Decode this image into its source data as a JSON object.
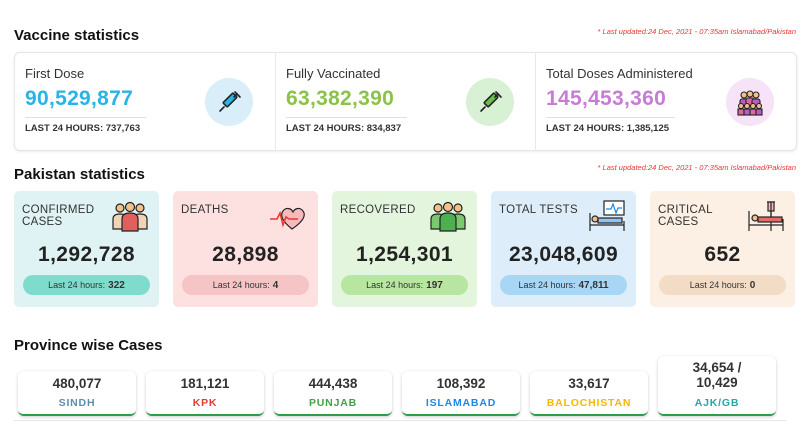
{
  "vaccine": {
    "title": "Vaccine statistics",
    "updated": "* Last updated:24 Dec, 2021 - 07:35am Islamabad/Pakistan",
    "items": [
      {
        "label": "First Dose",
        "value": "90,529,877",
        "last_label": "LAST 24 HOURS:",
        "last_value": "737,763",
        "color": "#29b3e6",
        "icon": "syringe-icon"
      },
      {
        "label": "Fully Vaccinated",
        "value": "63,382,390",
        "last_label": "LAST 24 HOURS:",
        "last_value": "834,837",
        "color": "#8bc34a",
        "icon": "syringe-icon"
      },
      {
        "label": "Total Doses Administered",
        "value": "145,453,360",
        "last_label": "LAST 24 HOURS:",
        "last_value": "1,385,125",
        "color": "#c77dd6",
        "icon": "crowd-icon"
      }
    ]
  },
  "pakistan": {
    "title": "Pakistan statistics",
    "updated": "* Last updated:24 Dec, 2021 - 07:35am Islamabad/Pakistan",
    "cards": [
      {
        "label": "Confirmed Cases",
        "value": "1,292,728",
        "last_label": "Last 24 hours:",
        "last_value": "322",
        "bg": "#dff3f4",
        "pill": "#7fdccd",
        "icon": "people-icon"
      },
      {
        "label": "Deaths",
        "value": "28,898",
        "last_label": "Last 24 hours:",
        "last_value": "4",
        "bg": "#fde1e1",
        "pill": "#f5c4c4",
        "icon": "heartbeat-icon"
      },
      {
        "label": "Recovered",
        "value": "1,254,301",
        "last_label": "Last 24 hours:",
        "last_value": "197",
        "bg": "#e3f5dc",
        "pill": "#b6e6a0",
        "icon": "people-icon"
      },
      {
        "label": "Total Tests",
        "value": "23,048,609",
        "last_label": "Last 24 hours:",
        "last_value": "47,811",
        "bg": "#ddeefa",
        "pill": "#a8d6f5",
        "icon": "hospital-bed-icon"
      },
      {
        "label": "Critical Cases",
        "value": "652",
        "last_label": "Last 24 hours:",
        "last_value": "0",
        "bg": "#fcefe3",
        "pill": "#f3dcc6",
        "icon": "iv-bed-icon"
      }
    ]
  },
  "province": {
    "title": "Province wise Cases",
    "cards": [
      {
        "value": "480,077",
        "name": "SINDH",
        "color": "#5d8fa8"
      },
      {
        "value": "181,121",
        "name": "KPK",
        "color": "#e53935"
      },
      {
        "value": "444,438",
        "name": "PUNJAB",
        "color": "#43a047"
      },
      {
        "value": "108,392",
        "name": "ISLAMABAD",
        "color": "#1e88e5"
      },
      {
        "value": "33,617",
        "name": "BALOCHISTAN",
        "color": "#f5b800"
      },
      {
        "value": "34,654 / 10,429",
        "name": "AJK/GB",
        "color": "#29a3a3"
      }
    ]
  }
}
